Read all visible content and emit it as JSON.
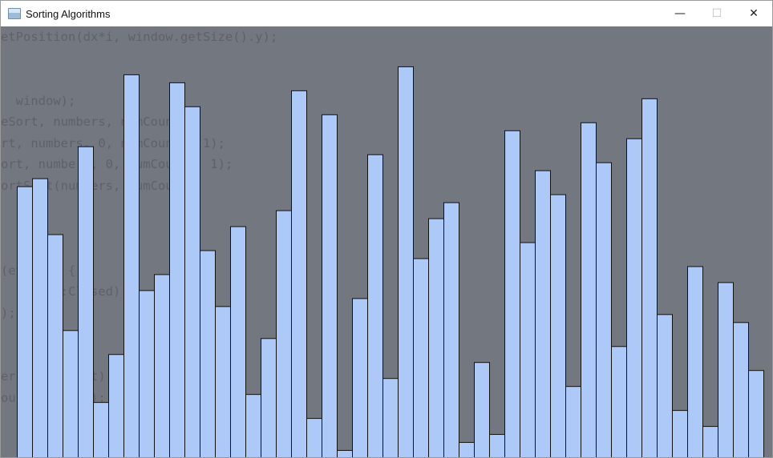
{
  "window": {
    "title": "Sorting Algorithms",
    "controls": {
      "minimize": "—",
      "maximize": "☐",
      "close": "✕"
    },
    "icon": "window-app-icon"
  },
  "colors": {
    "background": "#737780",
    "bar_fill": "#adc9f7",
    "bar_stroke": "#111111"
  },
  "background_code": [
    "etPosition(dx*i, window.getSize().y);",
    "",
    "",
    "  window);",
    "eSort, numbers, numCount);",
    "rt, numbers, 0, numCount - 1);",
    "ort, numbers, 0, numCount - 1);",
    "ortSort(numbers, numCount);",
    "",
    "",
    "",
    "(event)) {",
    "  Event::Closed) {",
    ");",
    "",
    "",
    "ers, numCount);",
    "ount, window);",
    ""
  ],
  "chart_data": {
    "type": "bar",
    "ylim": [
      0,
      540
    ],
    "values": [
      340,
      350,
      280,
      160,
      390,
      70,
      130,
      480,
      210,
      230,
      470,
      440,
      260,
      190,
      290,
      80,
      150,
      310,
      460,
      50,
      430,
      10,
      200,
      380,
      100,
      490,
      250,
      300,
      320,
      20,
      120,
      30,
      410,
      270,
      360,
      330,
      90,
      420,
      370,
      140,
      400,
      450,
      180,
      60,
      240,
      40,
      220,
      170,
      110
    ],
    "grid": false,
    "legend": "none"
  }
}
